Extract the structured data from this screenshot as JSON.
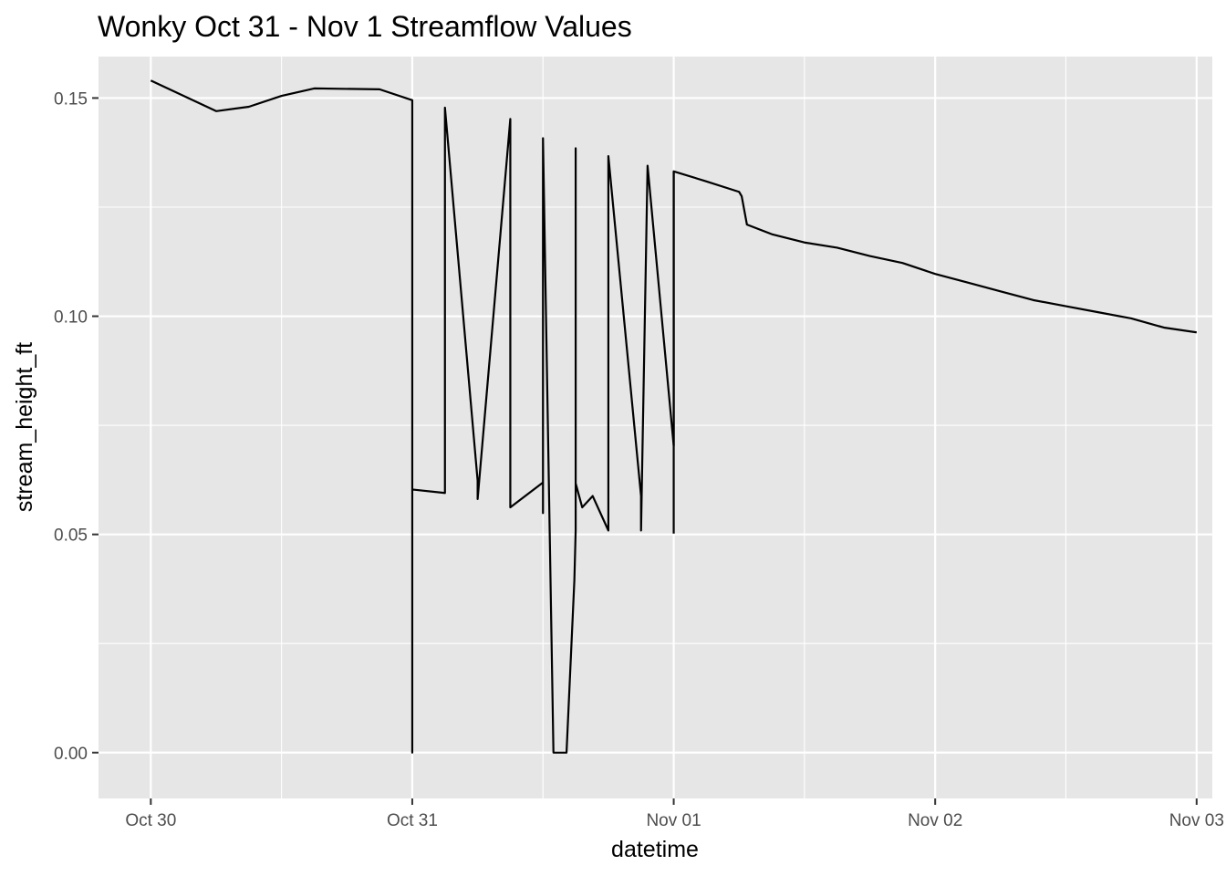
{
  "chart_data": {
    "type": "line",
    "title": "Wonky Oct 31 - Nov 1 Streamflow Values",
    "xlabel": "datetime",
    "ylabel": "stream_height_ft",
    "x_unit": "day offset from Oct 30 00:00",
    "xlim": [
      -0.2,
      4.06
    ],
    "ylim": [
      -0.0105,
      0.1595
    ],
    "x_ticks": [
      {
        "value": 0,
        "label": "Oct 30"
      },
      {
        "value": 1,
        "label": "Oct 31"
      },
      {
        "value": 2,
        "label": "Nov 01"
      },
      {
        "value": 3,
        "label": "Nov 02"
      },
      {
        "value": 4,
        "label": "Nov 03"
      }
    ],
    "y_ticks": [
      {
        "value": 0.0,
        "label": "0.00"
      },
      {
        "value": 0.05,
        "label": "0.05"
      },
      {
        "value": 0.1,
        "label": "0.10"
      },
      {
        "value": 0.15,
        "label": "0.15"
      }
    ],
    "grid": true,
    "legend": "none",
    "colors": {
      "panel": "#e6e6e6",
      "grid": "#ffffff",
      "line": "#000000",
      "tick_text": "#4d4d4d"
    },
    "series": [
      {
        "x": [
          0,
          0.25,
          0.375,
          0.5,
          0.625,
          0.875,
          1.0,
          1.0,
          1.0,
          1.125,
          1.125,
          1.25,
          1.25,
          1.25,
          1.375,
          1.375,
          1.5,
          1.5,
          1.5,
          1.54,
          1.59,
          1.62,
          1.625,
          1.625,
          1.625,
          1.65,
          1.69,
          1.75,
          1.75,
          1.875,
          1.875,
          1.875,
          1.9,
          2.0,
          2.0,
          2.125,
          2.25,
          2.26,
          2.28,
          2.375,
          2.5,
          2.625,
          2.75,
          2.875,
          3.0,
          3.125,
          3.25,
          3.375,
          3.5,
          3.625,
          3.75,
          3.875,
          4.0
        ],
        "y": [
          0.154,
          0.147,
          0.148,
          0.1505,
          0.1522,
          0.152,
          0.1495,
          0.0,
          0.0603,
          0.0595,
          0.1478,
          0.0623,
          0.0622,
          0.0581,
          0.1452,
          0.0562,
          0.0619,
          0.0549,
          0.1408,
          0.0,
          0.0,
          0.0395,
          0.0509,
          0.1385,
          0.0617,
          0.0562,
          0.0588,
          0.0509,
          0.1367,
          0.0588,
          0.0603,
          0.0509,
          0.1345,
          0.0703,
          0.1332,
          0.1309,
          0.1285,
          0.1275,
          0.121,
          0.1188,
          0.1169,
          0.1157,
          0.1138,
          0.1122,
          0.1097,
          0.1077,
          0.1057,
          0.1037,
          0.1023,
          0.1009,
          0.0995,
          0.0974,
          0.0963
        ]
      },
      {
        "x": [
          2.0,
          2.0
        ],
        "y": [
          0.1332,
          0.0502
        ]
      }
    ]
  }
}
